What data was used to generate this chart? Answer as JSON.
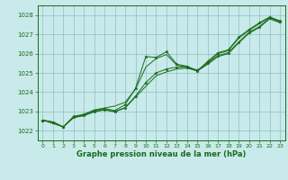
{
  "title": "Graphe pression niveau de la mer (hPa)",
  "bg_color": "#c8eaea",
  "grid_color": "#90c0c0",
  "line_color": "#1a6b1a",
  "xlim": [
    -0.5,
    23.5
  ],
  "ylim": [
    1021.5,
    1028.5
  ],
  "yticks": [
    1022,
    1023,
    1024,
    1025,
    1026,
    1027,
    1028
  ],
  "xticks": [
    0,
    1,
    2,
    3,
    4,
    5,
    6,
    7,
    8,
    9,
    10,
    11,
    12,
    13,
    14,
    15,
    16,
    17,
    18,
    19,
    20,
    21,
    22,
    23
  ],
  "series1": [
    [
      0,
      1022.55
    ],
    [
      1,
      1022.45
    ],
    [
      2,
      1022.2
    ],
    [
      3,
      1022.75
    ],
    [
      4,
      1022.85
    ],
    [
      5,
      1023.05
    ],
    [
      6,
      1023.15
    ],
    [
      7,
      1023.05
    ],
    [
      8,
      1023.35
    ],
    [
      9,
      1024.2
    ],
    [
      10,
      1025.85
    ],
    [
      11,
      1025.8
    ],
    [
      12,
      1026.1
    ],
    [
      13,
      1025.45
    ],
    [
      14,
      1025.35
    ],
    [
      15,
      1025.1
    ],
    [
      16,
      1025.6
    ],
    [
      17,
      1026.05
    ],
    [
      18,
      1026.2
    ],
    [
      19,
      1026.85
    ],
    [
      20,
      1027.25
    ],
    [
      21,
      1027.6
    ],
    [
      22,
      1027.9
    ],
    [
      23,
      1027.7
    ]
  ],
  "series2": [
    [
      0,
      1022.55
    ],
    [
      1,
      1022.45
    ],
    [
      2,
      1022.2
    ],
    [
      3,
      1022.7
    ],
    [
      4,
      1022.8
    ],
    [
      5,
      1023.0
    ],
    [
      6,
      1023.1
    ],
    [
      7,
      1023.0
    ],
    [
      8,
      1023.2
    ],
    [
      9,
      1023.8
    ],
    [
      10,
      1024.5
    ],
    [
      11,
      1025.0
    ],
    [
      12,
      1025.2
    ],
    [
      13,
      1025.3
    ],
    [
      14,
      1025.3
    ],
    [
      15,
      1025.15
    ],
    [
      16,
      1025.5
    ],
    [
      17,
      1025.9
    ],
    [
      18,
      1026.05
    ],
    [
      19,
      1026.6
    ],
    [
      20,
      1027.1
    ],
    [
      21,
      1027.4
    ],
    [
      22,
      1027.85
    ],
    [
      23,
      1027.65
    ]
  ],
  "series3": [
    [
      0,
      1022.55
    ],
    [
      1,
      1022.45
    ],
    [
      2,
      1022.2
    ],
    [
      3,
      1022.68
    ],
    [
      4,
      1022.78
    ],
    [
      5,
      1022.98
    ],
    [
      6,
      1023.08
    ],
    [
      7,
      1022.98
    ],
    [
      8,
      1023.18
    ],
    [
      9,
      1023.75
    ],
    [
      10,
      1024.3
    ],
    [
      11,
      1024.85
    ],
    [
      12,
      1025.05
    ],
    [
      13,
      1025.2
    ],
    [
      14,
      1025.25
    ],
    [
      15,
      1025.1
    ],
    [
      16,
      1025.45
    ],
    [
      17,
      1025.85
    ],
    [
      18,
      1026.0
    ],
    [
      19,
      1026.55
    ],
    [
      20,
      1027.05
    ],
    [
      21,
      1027.35
    ],
    [
      22,
      1027.8
    ],
    [
      23,
      1027.6
    ]
  ],
  "series4": [
    [
      0,
      1022.55
    ],
    [
      2,
      1022.2
    ],
    [
      3,
      1022.7
    ],
    [
      4,
      1022.85
    ],
    [
      5,
      1023.08
    ],
    [
      6,
      1023.18
    ],
    [
      7,
      1023.28
    ],
    [
      8,
      1023.48
    ],
    [
      9,
      1024.15
    ],
    [
      10,
      1025.3
    ],
    [
      11,
      1025.75
    ],
    [
      12,
      1025.95
    ],
    [
      13,
      1025.4
    ],
    [
      14,
      1025.3
    ],
    [
      15,
      1025.1
    ],
    [
      16,
      1025.55
    ],
    [
      17,
      1026.0
    ],
    [
      18,
      1026.15
    ],
    [
      19,
      1026.8
    ],
    [
      20,
      1027.2
    ],
    [
      21,
      1027.55
    ],
    [
      22,
      1027.88
    ],
    [
      23,
      1027.68
    ]
  ]
}
